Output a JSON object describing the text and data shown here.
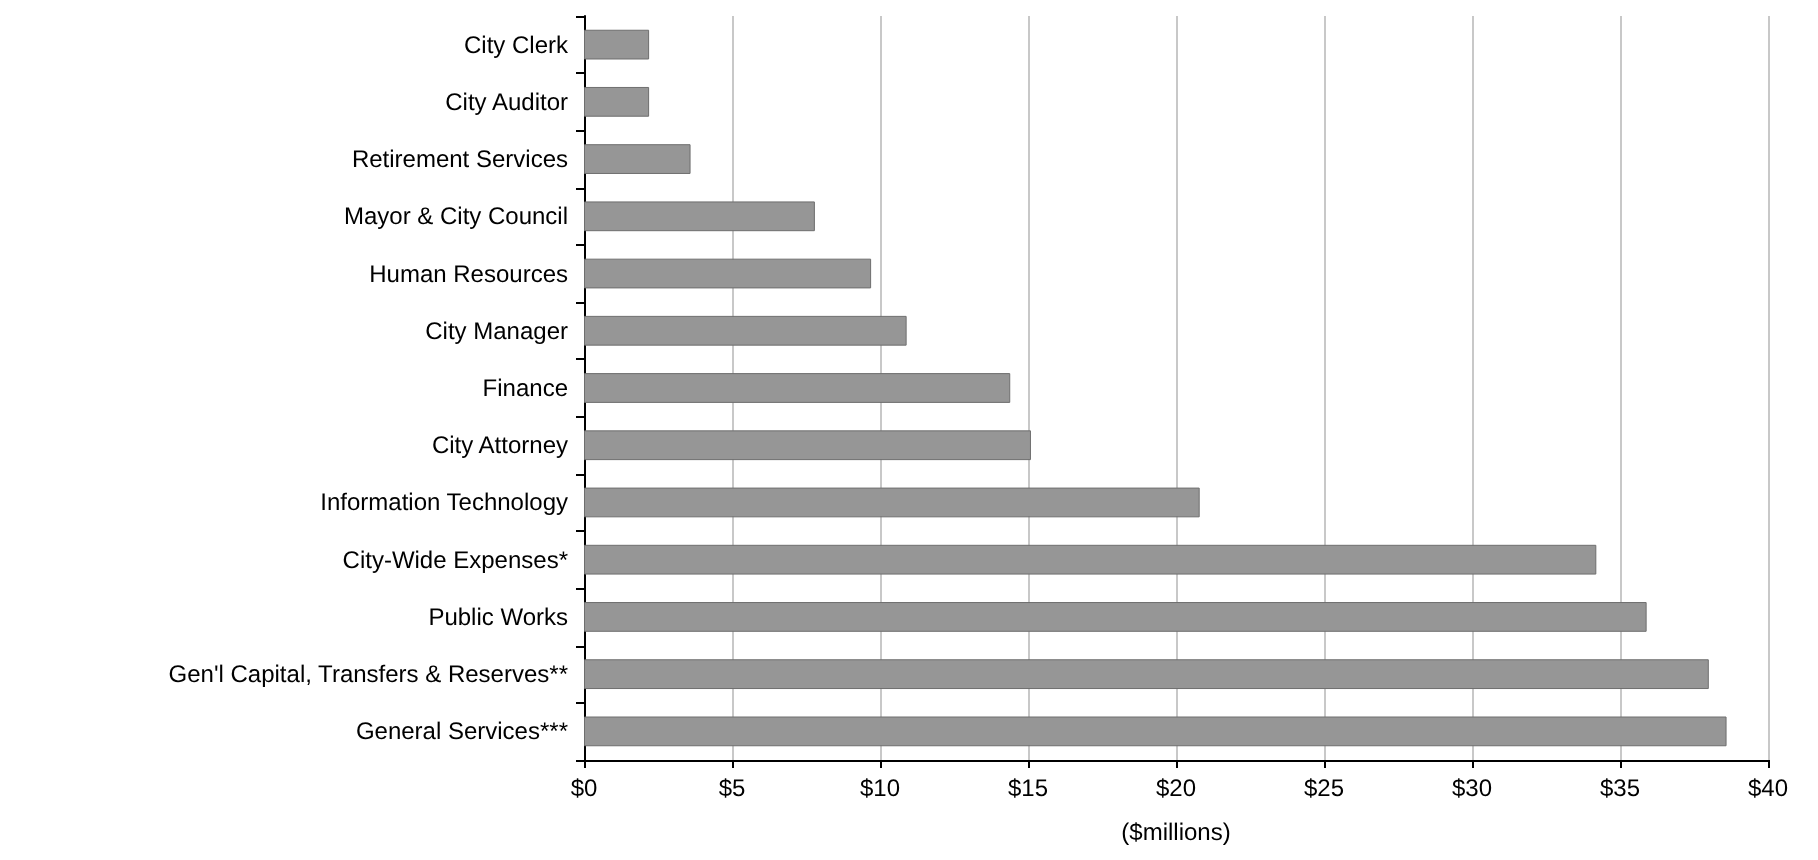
{
  "chart_data": {
    "type": "bar",
    "orientation": "horizontal",
    "xlabel": "($millions)",
    "categories": [
      "City Clerk",
      "City Auditor",
      "Retirement Services",
      "Mayor & City Council",
      "Human Resources",
      "City Manager",
      "Finance",
      "City Attorney",
      "Information Technology",
      "City-Wide Expenses*",
      "Public Works",
      "Gen'l Capital, Transfers & Reserves**",
      "General Services***"
    ],
    "values": [
      2.2,
      2.2,
      3.6,
      7.8,
      9.7,
      10.9,
      14.4,
      15.1,
      20.8,
      34.2,
      35.9,
      38.0,
      38.6
    ],
    "color": "#969696",
    "xlim": [
      0,
      40
    ],
    "xticks": [
      {
        "value": 0,
        "label": "$0"
      },
      {
        "value": 5,
        "label": "$5"
      },
      {
        "value": 10,
        "label": "$10"
      },
      {
        "value": 15,
        "label": "$15"
      },
      {
        "value": 20,
        "label": "$20"
      },
      {
        "value": 25,
        "label": "$25"
      },
      {
        "value": 30,
        "label": "$30"
      },
      {
        "value": 35,
        "label": "$35"
      },
      {
        "value": 40,
        "label": "$40"
      }
    ],
    "grid": "x"
  }
}
